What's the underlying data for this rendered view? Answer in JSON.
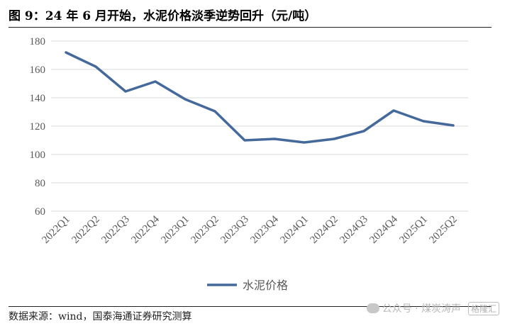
{
  "figure": {
    "title": "图 9：24 年 6 月开始，水泥价格淡季逆势回升（元/吨）",
    "source": "数据来源：wind，国泰海通证券研究测算"
  },
  "watermark": {
    "text": "公众号 · 煤炭涛声",
    "logo_text": "格隆汇"
  },
  "chart_data": {
    "type": "line",
    "title": "图 9：24 年 6 月开始，水泥价格淡季逆势回升（元/吨）",
    "xlabel": "",
    "ylabel": "",
    "categories": [
      "2022Q1",
      "2022Q2",
      "2022Q3",
      "2022Q4",
      "2023Q1",
      "2023Q2",
      "2023Q3",
      "2023Q4",
      "2024Q1",
      "2024Q2",
      "2024Q3",
      "2024Q4",
      "2025Q1",
      "2025Q2"
    ],
    "series": [
      {
        "name": "水泥价格",
        "color": "#44699a",
        "values": [
          172,
          162,
          144.5,
          151.5,
          139,
          130.5,
          110,
          111,
          108.5,
          111,
          116.5,
          131,
          123.5,
          120.5
        ]
      }
    ],
    "ylim": [
      60,
      180
    ],
    "yticks": [
      60,
      80,
      100,
      120,
      140,
      160,
      180
    ],
    "grid": true,
    "legend_position": "bottom-center"
  }
}
